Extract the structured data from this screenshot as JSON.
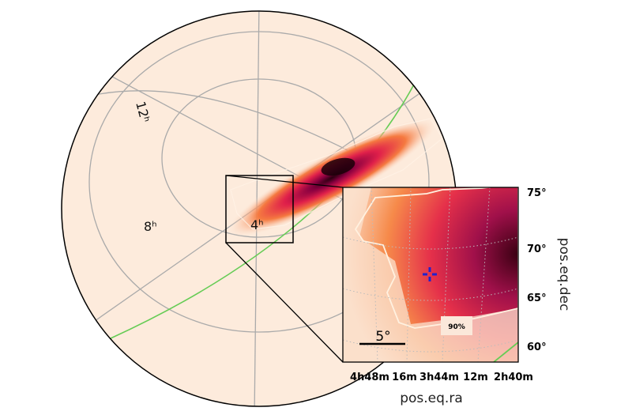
{
  "chart_data": {
    "type": "heatmap",
    "description_kind": "sky probability map (orthographic globe with zoomed inset)",
    "globe": {
      "ra_labels": [
        "12h",
        "8h",
        "4h"
      ],
      "graticule": true,
      "background_color": "#fdebdc",
      "galactic_plane_color": "#66cc55",
      "colormap": "cylon"
    },
    "inset": {
      "xlabel": "pos.eq.ra",
      "ylabel": "pos.eq.dec",
      "x_ticks": [
        "4h48m",
        "16m",
        "3h44m",
        "12m",
        "2h40m"
      ],
      "y_ticks": [
        "75°",
        "70°",
        "65°",
        "60°"
      ],
      "ylim": [
        58.5,
        76
      ],
      "contour_label": "90%",
      "scalebar_label": "5°",
      "marker_color": "#2222cc",
      "grid": "dotted"
    }
  }
}
